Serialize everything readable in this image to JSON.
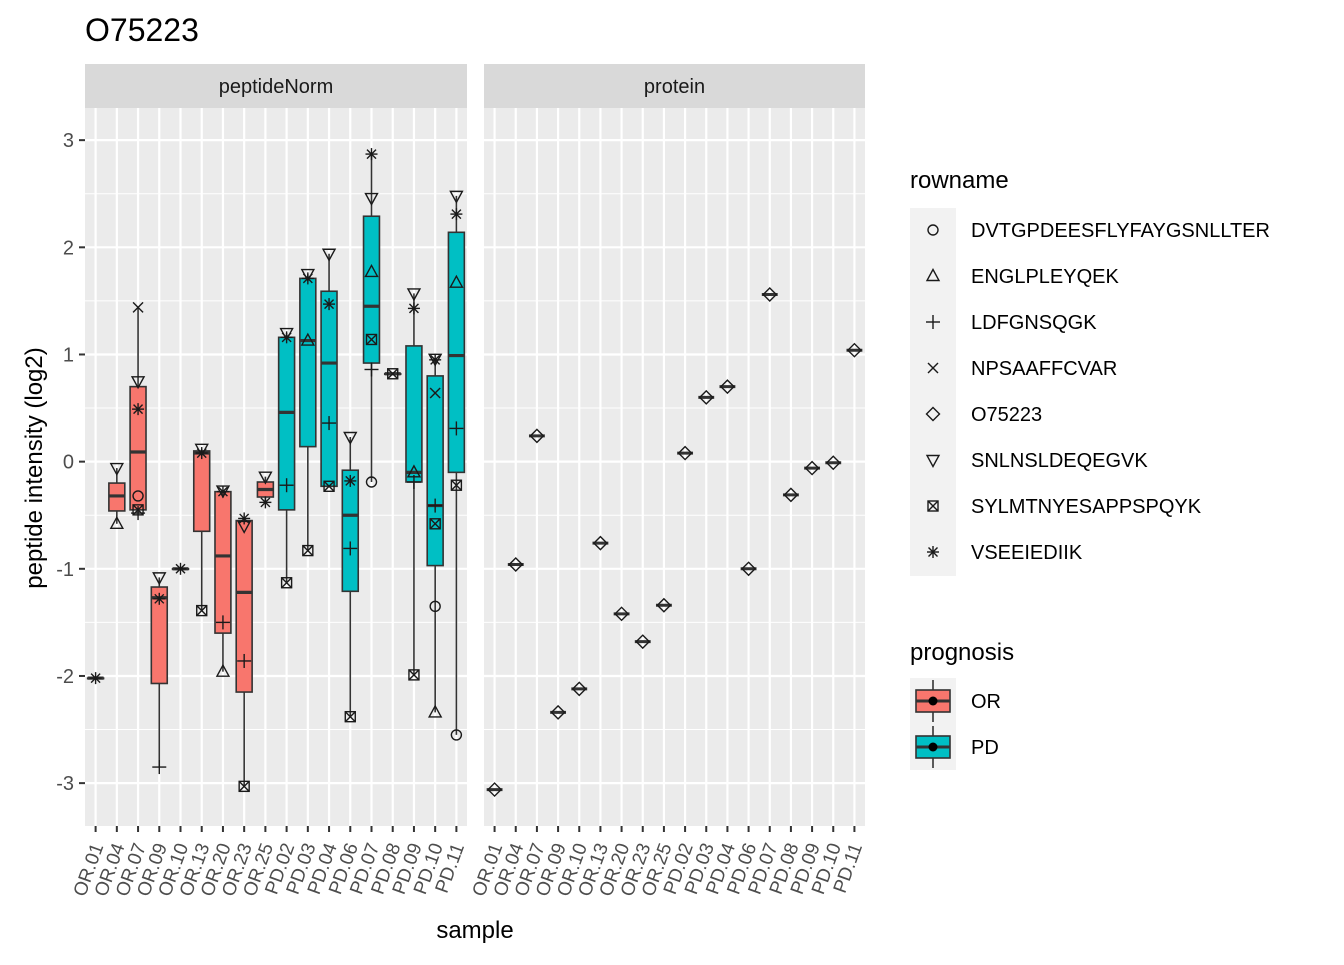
{
  "chart_data": {
    "type": "boxplot",
    "title": "O75223",
    "xlabel": "sample",
    "ylabel": "peptide intensity (log2)",
    "ylim": [
      -3.4,
      3.3
    ],
    "y_ticks": [
      -3,
      -2,
      -1,
      0,
      1,
      2,
      3
    ],
    "y_tick_labels": [
      "-3",
      "-2",
      "-1",
      "0",
      "1",
      "2",
      "3"
    ],
    "grid": true,
    "categories": [
      "OR.01",
      "OR.04",
      "OR.07",
      "OR.09",
      "OR.10",
      "OR.13",
      "OR.20",
      "OR.23",
      "OR.25",
      "PD.02",
      "PD.03",
      "PD.04",
      "PD.06",
      "PD.07",
      "PD.08",
      "PD.09",
      "PD.10",
      "PD.11"
    ],
    "panels": [
      {
        "name": "peptideNorm",
        "boxes": [
          {
            "sample": "OR.01",
            "group": "OR",
            "q1": -2.02,
            "median": -2.02,
            "q3": -2.02,
            "lo": -2.02,
            "hi": -2.02
          },
          {
            "sample": "OR.04",
            "group": "OR",
            "q1": -0.46,
            "median": -0.32,
            "q3": -0.2,
            "lo": -0.58,
            "hi": -0.06
          },
          {
            "sample": "OR.07",
            "group": "OR",
            "q1": -0.45,
            "median": 0.09,
            "q3": 0.7,
            "lo": -0.48,
            "hi": 1.44
          },
          {
            "sample": "OR.09",
            "group": "OR",
            "q1": -2.07,
            "median": -1.27,
            "q3": -1.17,
            "lo": -2.85,
            "hi": -1.08
          },
          {
            "sample": "OR.10",
            "group": "OR",
            "q1": -1.0,
            "median": -1.0,
            "q3": -1.0,
            "lo": -1.0,
            "hi": -1.0
          },
          {
            "sample": "OR.13",
            "group": "OR",
            "q1": -0.65,
            "median": 0.08,
            "q3": 0.1,
            "lo": -1.39,
            "hi": 0.12
          },
          {
            "sample": "OR.20",
            "group": "OR",
            "q1": -1.6,
            "median": -0.88,
            "q3": -0.28,
            "lo": -1.96,
            "hi": -0.27
          },
          {
            "sample": "OR.23",
            "group": "OR",
            "q1": -2.15,
            "median": -1.22,
            "q3": -0.55,
            "lo": -3.03,
            "hi": -0.53
          },
          {
            "sample": "OR.25",
            "group": "OR",
            "q1": -0.33,
            "median": -0.26,
            "q3": -0.19,
            "lo": -0.38,
            "hi": -0.14
          },
          {
            "sample": "PD.02",
            "group": "PD",
            "q1": -0.45,
            "median": 0.46,
            "q3": 1.16,
            "lo": -1.13,
            "hi": 1.2
          },
          {
            "sample": "PD.03",
            "group": "PD",
            "q1": 0.14,
            "median": 1.13,
            "q3": 1.71,
            "lo": -0.83,
            "hi": 1.75
          },
          {
            "sample": "PD.04",
            "group": "PD",
            "q1": -0.23,
            "median": 0.92,
            "q3": 1.59,
            "lo": -0.23,
            "hi": 1.94
          },
          {
            "sample": "PD.06",
            "group": "PD",
            "q1": -1.21,
            "median": -0.5,
            "q3": -0.08,
            "lo": -2.38,
            "hi": 0.23
          },
          {
            "sample": "PD.07",
            "group": "PD",
            "q1": 0.92,
            "median": 1.45,
            "q3": 2.29,
            "lo": -0.19,
            "hi": 2.87
          },
          {
            "sample": "PD.08",
            "group": "PD",
            "q1": 0.82,
            "median": 0.82,
            "q3": 0.82,
            "lo": 0.82,
            "hi": 0.82
          },
          {
            "sample": "PD.09",
            "group": "PD",
            "q1": -0.19,
            "median": -0.1,
            "q3": 1.08,
            "lo": -1.99,
            "hi": 1.57
          },
          {
            "sample": "PD.10",
            "group": "PD",
            "q1": -0.97,
            "median": -0.41,
            "q3": 0.8,
            "lo": -2.34,
            "hi": 0.96
          },
          {
            "sample": "PD.11",
            "group": "PD",
            "q1": -0.1,
            "median": 0.99,
            "q3": 2.14,
            "lo": -2.55,
            "hi": 2.48
          }
        ],
        "points": {
          "DVTGPDEESFLYFAYGSNLLTER": {
            "OR.07": -0.32,
            "PD.07": -0.19,
            "PD.10": -1.35,
            "PD.11": -2.55
          },
          "ENGLPLEYQEK": {
            "OR.04": -0.58,
            "OR.20": -1.96,
            "PD.03": 1.13,
            "PD.07": 1.77,
            "PD.09": -0.1,
            "PD.10": -2.34,
            "PD.11": 1.67
          },
          "LDFGNSQGK": {
            "OR.07": -0.48,
            "OR.09": -2.85,
            "OR.20": -1.5,
            "OR.23": -1.86,
            "PD.02": -0.22,
            "PD.04": 0.36,
            "PD.06": -0.81,
            "PD.07": 0.86,
            "PD.09": -0.19,
            "PD.10": -0.41,
            "PD.11": 0.31
          },
          "NPSAAFFCVAR": {
            "OR.07": 1.44,
            "PD.10": 0.64
          },
          "O75223": {},
          "SNLNSLDEQEGVK": {
            "OR.04": -0.06,
            "OR.07": 0.75,
            "OR.09": -1.08,
            "OR.13": 0.12,
            "OR.20": -0.27,
            "OR.23": -0.6,
            "OR.25": -0.14,
            "PD.02": 1.2,
            "PD.03": 1.75,
            "PD.04": 1.94,
            "PD.06": 0.23,
            "PD.07": 2.46,
            "PD.09": 1.57,
            "PD.10": 0.96,
            "PD.11": 2.48
          },
          "SYLMTNYESAPPSPQYK": {
            "OR.07": -0.45,
            "OR.13": -1.39,
            "OR.23": -3.03,
            "PD.02": -1.13,
            "PD.03": -0.83,
            "PD.04": -0.23,
            "PD.06": -2.38,
            "PD.07": 1.14,
            "PD.08": 0.82,
            "PD.09": -1.99,
            "PD.10": -0.58,
            "PD.11": -0.22
          },
          "VSEEIEDIIK": {
            "OR.01": -2.02,
            "OR.07": 0.49,
            "OR.09": -1.28,
            "OR.10": -1.0,
            "OR.13": 0.08,
            "OR.20": -0.28,
            "OR.23": -0.53,
            "OR.25": -0.38,
            "PD.02": 1.16,
            "PD.03": 1.71,
            "PD.04": 1.47,
            "PD.06": -0.18,
            "PD.07": 2.87,
            "PD.09": 1.43,
            "PD.10": 0.95,
            "PD.11": 2.31
          }
        }
      },
      {
        "name": "protein",
        "boxes": [],
        "points": {
          "O75223": {
            "OR.01": -3.06,
            "OR.04": -0.96,
            "OR.07": 0.24,
            "OR.09": -2.34,
            "OR.10": -2.12,
            "OR.13": -0.76,
            "OR.20": -1.42,
            "OR.23": -1.68,
            "OR.25": -1.34,
            "PD.02": 0.08,
            "PD.03": 0.6,
            "PD.04": 0.7,
            "PD.06": -1.0,
            "PD.07": 1.56,
            "PD.08": -0.31,
            "PD.09": -0.06,
            "PD.10": -0.01,
            "PD.11": 1.04
          }
        }
      }
    ],
    "legend": {
      "rowname": {
        "title": "rowname",
        "entries": [
          {
            "name": "DVTGPDEESFLYFAYGSNLLTER",
            "shape": "circle"
          },
          {
            "name": "ENGLPLEYQEK",
            "shape": "triangle-up"
          },
          {
            "name": "LDFGNSQGK",
            "shape": "plus"
          },
          {
            "name": "NPSAAFFCVAR",
            "shape": "cross"
          },
          {
            "name": "O75223",
            "shape": "diamond"
          },
          {
            "name": "SNLNSLDEQEGVK",
            "shape": "triangle-down"
          },
          {
            "name": "SYLMTNYESAPPSPQYK",
            "shape": "square-cross"
          },
          {
            "name": "VSEEIEDIIK",
            "shape": "asterisk"
          }
        ]
      },
      "prognosis": {
        "title": "prognosis",
        "entries": [
          {
            "name": "OR",
            "color": "#F8766D"
          },
          {
            "name": "PD",
            "color": "#00BFC4"
          }
        ]
      }
    },
    "colors": {
      "OR": "#F8766D",
      "PD": "#00BFC4",
      "panel_bg": "#EBEBEB",
      "strip_bg": "#D9D9D9",
      "grid": "#FFFFFF"
    }
  }
}
